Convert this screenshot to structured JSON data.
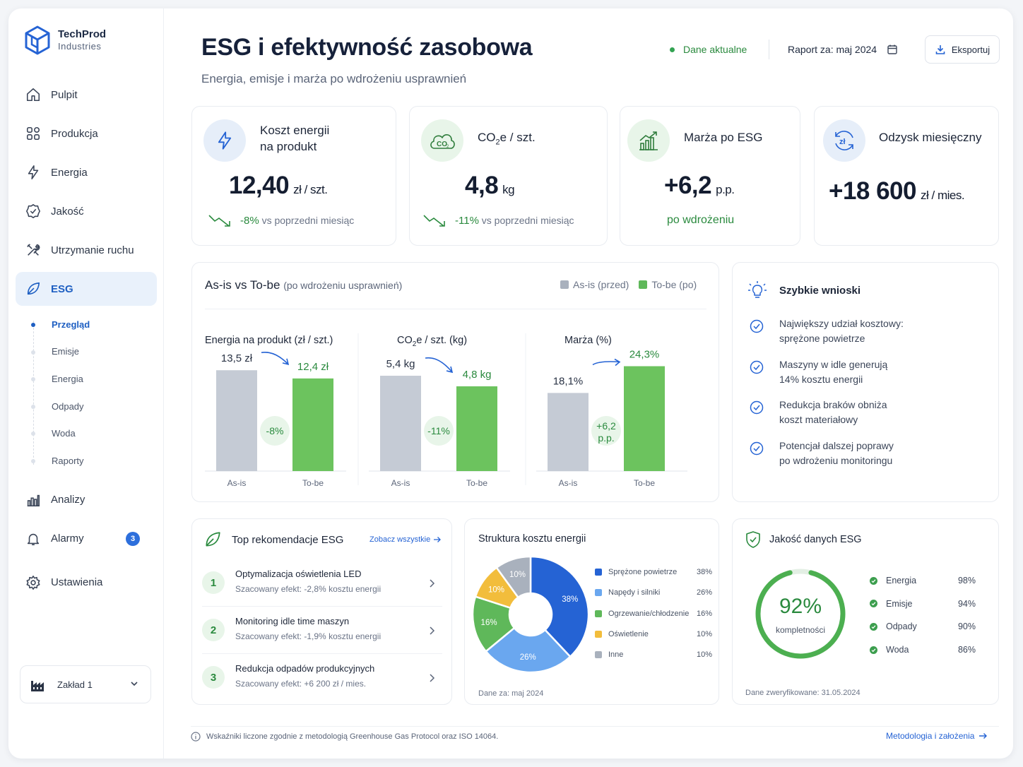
{
  "brand": {
    "name_line1": "TechProd",
    "name_line2": "Industries"
  },
  "nav": {
    "items": [
      {
        "label": "Pulpit",
        "icon": "home-icon"
      },
      {
        "label": "Produkcja",
        "icon": "grid-icon"
      },
      {
        "label": "Energia",
        "icon": "bolt-icon"
      },
      {
        "label": "Jakość",
        "icon": "badge-check-icon"
      },
      {
        "label": "Utrzymanie ruchu",
        "icon": "tools-icon"
      },
      {
        "label": "ESG",
        "icon": "leaf-icon"
      }
    ],
    "sub_items": [
      "Przegląd",
      "Emisje",
      "Energia",
      "Odpady",
      "Woda",
      "Raporty"
    ],
    "items_bottom": [
      {
        "label": "Analizy",
        "icon": "bar-chart-icon"
      },
      {
        "label": "Alarmy",
        "icon": "bell-icon",
        "badge": "3"
      },
      {
        "label": "Ustawienia",
        "icon": "gear-icon"
      }
    ],
    "plant": "Zakład 1"
  },
  "header": {
    "title": "ESG i efektywność zasobowa",
    "subtitle": "Energia, emisje i marża po wdrożeniu usprawnień",
    "status": "Dane aktualne",
    "report_label": "Raport za:",
    "report_period": "maj 2024",
    "export_label": "Eksportuj"
  },
  "kpis": {
    "energy": {
      "label1": "Koszt energii",
      "label2": "na produkt",
      "value": "12,40",
      "unit": "zł / szt.",
      "delta": "-8%",
      "delta_note": "vs poprzedni miesiąc"
    },
    "co2": {
      "label_pre": "CO",
      "label_sub": "2",
      "label_post": "e / szt.",
      "icon_text": "CO",
      "icon_sub": "2",
      "value": "4,8",
      "unit": "kg",
      "delta": "-11%",
      "delta_note": "vs poprzedni miesiąc"
    },
    "margin": {
      "label": "Marża po ESG",
      "value": "+6,2",
      "unit": "p.p.",
      "note": "po wdrożeniu"
    },
    "savings": {
      "label": "Odzysk miesięczny",
      "icon_text": "zł",
      "value": "+18 600",
      "unit": "zł / mies."
    }
  },
  "comparison": {
    "title": "As-is vs To-be",
    "title_note": "(po wdrożeniu usprawnień)",
    "legend": {
      "asis": "As-is (przed)",
      "tobe": "To-be (po)"
    },
    "colors": {
      "asis": "#c5cbd5",
      "tobe": "#6cc35e"
    }
  },
  "chart_data": [
    {
      "type": "bar",
      "title": "Energia na produkt (zł / szt.)",
      "categories": [
        "As-is",
        "To-be"
      ],
      "values": [
        13.5,
        12.4
      ],
      "value_labels": [
        "13,5 zł",
        "12,4 zł"
      ],
      "change": "-8%"
    },
    {
      "type": "bar",
      "title_pre": "CO",
      "title_sub": "2",
      "title_post": "e / szt. (kg)",
      "categories": [
        "As-is",
        "To-be"
      ],
      "values": [
        5.4,
        4.8
      ],
      "value_labels": [
        "5,4 kg",
        "4,8 kg"
      ],
      "change": "-11%"
    },
    {
      "type": "bar",
      "title": "Marża (%)",
      "categories": [
        "As-is",
        "To-be"
      ],
      "values": [
        18.1,
        24.3
      ],
      "value_labels": [
        "18,1%",
        "24,3%"
      ],
      "change_line1": "+6,2",
      "change_line2": "p.p."
    },
    {
      "type": "pie",
      "title": "Struktura kosztu energii",
      "categories": [
        "Sprężone powietrze",
        "Napędy i silniki",
        "Ogrzewanie/chłodzenie",
        "Oświetlenie",
        "Inne"
      ],
      "values": [
        38,
        26,
        16,
        10,
        10
      ],
      "labels": [
        "38%",
        "26%",
        "16%",
        "10%",
        "10%"
      ],
      "colors": [
        "#2563d4",
        "#6aa7ef",
        "#5fb85a",
        "#f2bd3c",
        "#a9b1bd"
      ],
      "note": "Dane za: maj 2024"
    }
  ],
  "insights": {
    "title": "Szybkie wnioski",
    "items": [
      {
        "l1": "Największy udział kosztowy:",
        "l2": "sprężone powietrze"
      },
      {
        "l1": "Maszyny w idle generują",
        "l2": "14% kosztu energii"
      },
      {
        "l1": "Redukcja braków obniża",
        "l2": "koszt materiałowy"
      },
      {
        "l1": "Potencjał dalszej poprawy",
        "l2": "po wdrożeniu monitoringu"
      }
    ]
  },
  "recommendations": {
    "title": "Top rekomendacje ESG",
    "see_all": "Zobacz wszystkie",
    "items": [
      {
        "num": "1",
        "title": "Optymalizacja oświetlenia LED",
        "effect": "Szacowany efekt: -2,8% kosztu energii"
      },
      {
        "num": "2",
        "title": "Monitoring idle time maszyn",
        "effect": "Szacowany efekt: -1,9% kosztu energii"
      },
      {
        "num": "3",
        "title": "Redukcja odpadów produkcyjnych",
        "effect": "Szacowany efekt: +6 200 zł / mies."
      }
    ]
  },
  "data_quality": {
    "title": "Jakość danych ESG",
    "completeness": 92,
    "completeness_label": "92%",
    "completeness_note": "kompletności",
    "items": [
      {
        "label": "Energia",
        "value": "98%"
      },
      {
        "label": "Emisje",
        "value": "94%"
      },
      {
        "label": "Odpady",
        "value": "90%"
      },
      {
        "label": "Woda",
        "value": "86%"
      }
    ],
    "verified": "Dane zweryfikowane: 31.05.2024"
  },
  "footer": {
    "note": "Wskaźniki liczone zgodnie z metodologią Greenhouse Gas Protocol oraz ISO 14064.",
    "link": "Metodologia i założenia"
  }
}
